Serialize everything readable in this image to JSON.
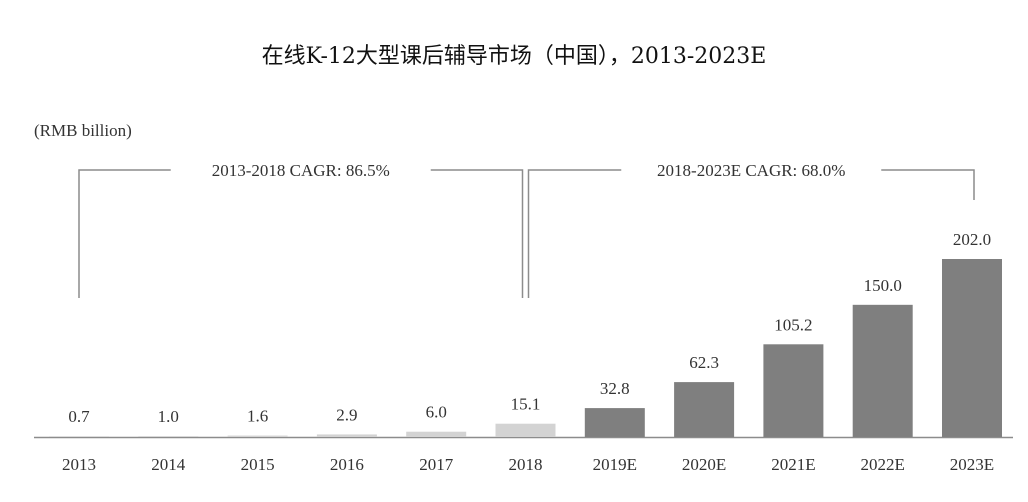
{
  "chart_data": {
    "type": "bar",
    "title": "在线K-12大型课后辅导市场（中国），2013-2023E",
    "unit_label": "(RMB billion)",
    "categories": [
      "2013",
      "2014",
      "2015",
      "2016",
      "2017",
      "2018",
      "2019E",
      "2020E",
      "2021E",
      "2022E",
      "2023E"
    ],
    "values": [
      0.7,
      1.0,
      1.6,
      2.9,
      6.0,
      15.1,
      32.8,
      62.3,
      105.2,
      150.0,
      202.0
    ],
    "value_labels": [
      "0.7",
      "1.0",
      "1.6",
      "2.9",
      "6.0",
      "15.1",
      "32.8",
      "62.3",
      "105.2",
      "150.0",
      "202.0"
    ],
    "bar_colors": [
      "#d3d3d3",
      "#d3d3d3",
      "#d3d3d3",
      "#d3d3d3",
      "#d3d3d3",
      "#d3d3d3",
      "#7f7f7f",
      "#7f7f7f",
      "#7f7f7f",
      "#7f7f7f",
      "#7f7f7f"
    ],
    "ylim": [
      0,
      202
    ],
    "grid": false,
    "annotations": [
      {
        "text": "2013-2018 CAGR: 86.5%",
        "from": "2013",
        "to": "2018"
      },
      {
        "text": "2018-2023E CAGR: 68.0%",
        "from": "2018",
        "to": "2023E"
      }
    ]
  }
}
